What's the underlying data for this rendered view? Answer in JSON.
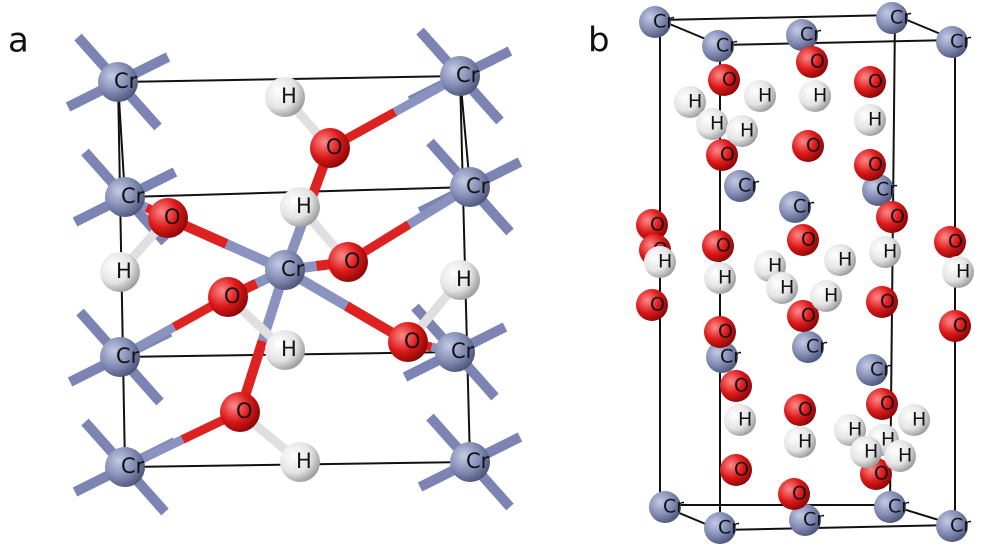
{
  "panels": [
    {
      "label": "a",
      "atoms": [
        "Cr",
        "Cr",
        "Cr",
        "Cr",
        "Cr",
        "Cr",
        "Cr",
        "Cr",
        "Cr",
        "H",
        "H",
        "H",
        "H",
        "H",
        "H",
        "O",
        "O",
        "O",
        "O",
        "O",
        "O"
      ]
    },
    {
      "label": "b",
      "atoms": [
        "Cr",
        "Cr",
        "Cr",
        "Cr",
        "Cr",
        "Cr",
        "Cr",
        "Cr",
        "Cr",
        "Cr",
        "Cr",
        "Cr",
        "Cr",
        "Cr",
        "Cr",
        "Cr",
        "O",
        "O",
        "O",
        "O",
        "O",
        "O",
        "O",
        "O",
        "O",
        "O",
        "O",
        "O",
        "O",
        "O",
        "O",
        "O",
        "O",
        "O",
        "O",
        "O",
        "O",
        "O",
        "O",
        "H",
        "H",
        "H",
        "H",
        "H",
        "H",
        "H",
        "H",
        "H",
        "H",
        "H",
        "H",
        "H",
        "H",
        "H",
        "H",
        "H",
        "H",
        "H",
        "H",
        "H"
      ]
    }
  ]
}
